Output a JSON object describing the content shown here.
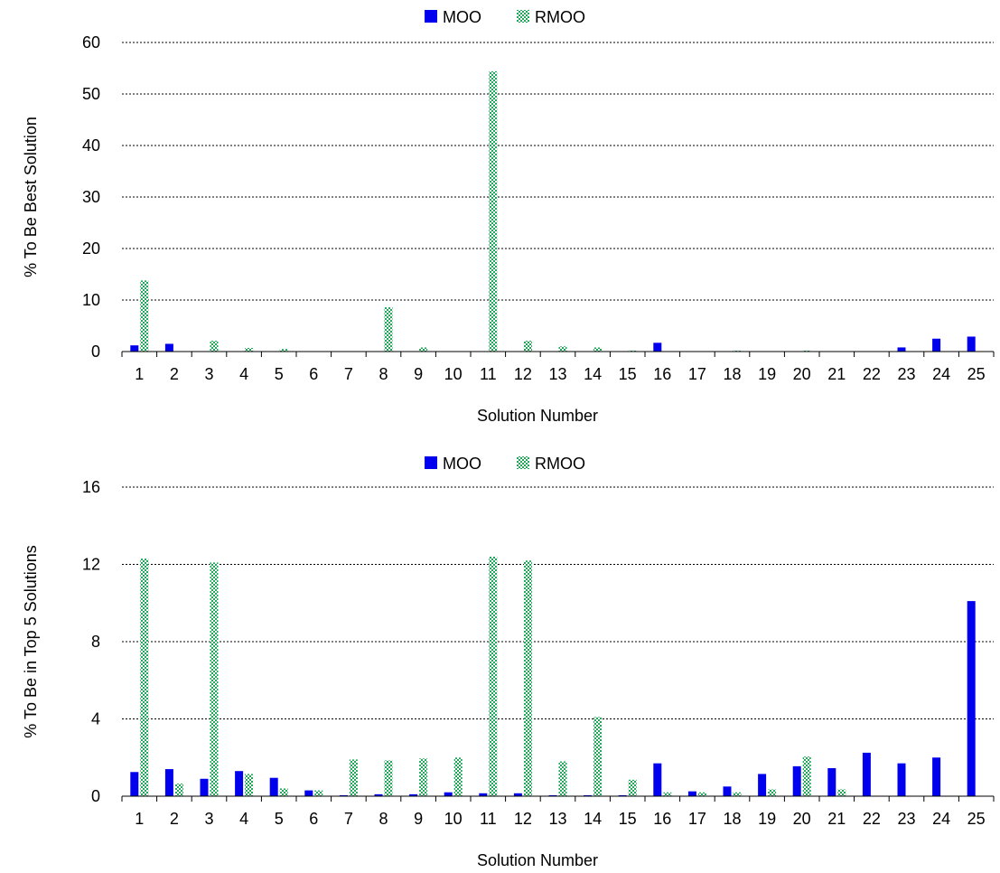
{
  "charts": [
    {
      "id": "best",
      "type": "bar",
      "ylabel": "% To Be Best Solution",
      "xlabel": "Solution Number",
      "ylim": [
        0,
        60
      ],
      "yticks": [
        "0",
        "10",
        "20",
        "30",
        "40",
        "50",
        "60"
      ],
      "categories": [
        "1",
        "2",
        "3",
        "4",
        "5",
        "6",
        "7",
        "8",
        "9",
        "10",
        "11",
        "12",
        "13",
        "14",
        "15",
        "16",
        "17",
        "18",
        "19",
        "20",
        "21",
        "22",
        "23",
        "24",
        "25"
      ],
      "series": [
        {
          "name": "MOO",
          "color": "#0000ee",
          "pattern": "solid",
          "values": [
            1.2,
            1.5,
            0,
            0,
            0,
            0,
            0,
            0,
            0,
            0,
            0,
            0,
            0,
            0,
            0,
            1.7,
            0,
            0,
            0,
            0,
            0,
            0,
            0.8,
            2.5,
            2.9
          ]
        },
        {
          "name": "RMOO",
          "color": "#22a85a",
          "pattern": "hatched",
          "values": [
            13.8,
            0,
            2.1,
            0.7,
            0.5,
            0,
            0,
            8.6,
            0.8,
            0,
            54.4,
            2.1,
            1.0,
            0.8,
            0.2,
            0,
            0,
            0.2,
            0,
            0.2,
            0,
            0,
            0,
            0,
            0
          ]
        }
      ],
      "legend_position": "top-center",
      "grid": true
    },
    {
      "id": "top5",
      "type": "bar",
      "ylabel": "% To Be in Top 5 Solutions",
      "xlabel": "Solution Number",
      "ylim": [
        0,
        16
      ],
      "yticks": [
        "0",
        "4",
        "8",
        "12",
        "16"
      ],
      "categories": [
        "1",
        "2",
        "3",
        "4",
        "5",
        "6",
        "7",
        "8",
        "9",
        "10",
        "11",
        "12",
        "13",
        "14",
        "15",
        "16",
        "17",
        "18",
        "19",
        "20",
        "21",
        "22",
        "23",
        "24",
        "25"
      ],
      "series": [
        {
          "name": "MOO",
          "color": "#0000ee",
          "pattern": "solid",
          "values": [
            1.25,
            1.4,
            0.9,
            1.3,
            0.95,
            0.3,
            0.05,
            0.1,
            0.1,
            0.2,
            0.15,
            0.15,
            0.05,
            0.05,
            0.05,
            1.7,
            0.25,
            0.5,
            1.15,
            1.55,
            1.45,
            2.25,
            1.7,
            2.0,
            10.1
          ]
        },
        {
          "name": "RMOO",
          "color": "#22a85a",
          "pattern": "hatched",
          "values": [
            12.3,
            0.65,
            12.1,
            1.15,
            0.4,
            0.3,
            1.9,
            1.85,
            1.95,
            2.0,
            12.4,
            12.2,
            1.8,
            4.1,
            0.85,
            0.2,
            0.2,
            0.2,
            0.35,
            2.05,
            0.35,
            0,
            0,
            0,
            0
          ]
        }
      ],
      "legend_position": "top-center",
      "grid": true
    }
  ]
}
